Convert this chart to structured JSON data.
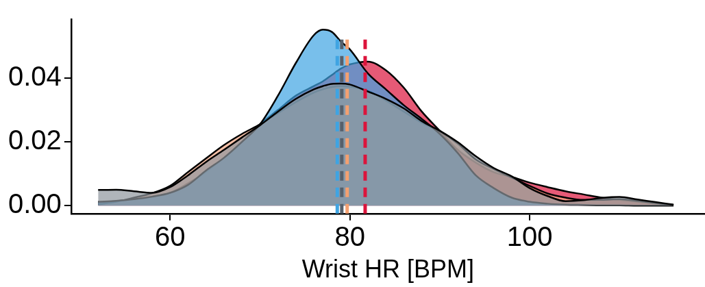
{
  "chart_data": {
    "type": "area",
    "xlabel": "Wrist HR [BPM]",
    "x": [
      52,
      54,
      56,
      58,
      60,
      62,
      64,
      66,
      68,
      70,
      72,
      74,
      76,
      77,
      78,
      79,
      80,
      82,
      84,
      86,
      88,
      90,
      92,
      94,
      96,
      98,
      100,
      102,
      104,
      106,
      108,
      110,
      112,
      114,
      116
    ],
    "series": [
      {
        "color": "#dc143c",
        "values": [
          0.001,
          0.0014,
          0.002,
          0.0028,
          0.004,
          0.007,
          0.0105,
          0.015,
          0.02,
          0.0255,
          0.03,
          0.0345,
          0.0375,
          0.039,
          0.041,
          0.043,
          0.0443,
          0.0452,
          0.0425,
          0.037,
          0.0295,
          0.0235,
          0.0175,
          0.0135,
          0.0105,
          0.009,
          0.0072,
          0.0058,
          0.0045,
          0.0035,
          0.0025,
          0.0018,
          0.0012,
          0.0006,
          0.0002
        ]
      },
      {
        "color": "#f4a582",
        "values": [
          0.0004,
          0.0012,
          0.0025,
          0.0039,
          0.0062,
          0.0105,
          0.0148,
          0.019,
          0.0225,
          0.0255,
          0.029,
          0.0325,
          0.0355,
          0.0365,
          0.0372,
          0.0375,
          0.0373,
          0.036,
          0.033,
          0.0295,
          0.026,
          0.0233,
          0.0195,
          0.0145,
          0.0115,
          0.0088,
          0.0062,
          0.0038,
          0.0025,
          0.0018,
          0.0018,
          0.002,
          0.0015,
          0.0008,
          0.0002
        ]
      },
      {
        "color": "#3fa4e2",
        "values": [
          0.0012,
          0.0015,
          0.002,
          0.0028,
          0.004,
          0.0065,
          0.011,
          0.015,
          0.02,
          0.0255,
          0.0345,
          0.0448,
          0.0535,
          0.0552,
          0.0545,
          0.0515,
          0.049,
          0.0415,
          0.0365,
          0.0315,
          0.0272,
          0.0225,
          0.0165,
          0.0095,
          0.0055,
          0.0025,
          0.0012,
          0.0006,
          0.0003,
          0.0002,
          0.0001,
          0.0001,
          0,
          0,
          0
        ]
      },
      {
        "color": "#8f969c",
        "values": [
          0.0049,
          0.005,
          0.0045,
          0.004,
          0.0058,
          0.0095,
          0.0137,
          0.0175,
          0.0214,
          0.0252,
          0.0295,
          0.0335,
          0.0365,
          0.0375,
          0.0382,
          0.0383,
          0.038,
          0.0358,
          0.0335,
          0.0305,
          0.0265,
          0.0235,
          0.0199,
          0.0155,
          0.0118,
          0.0092,
          0.0055,
          0.003,
          0.0014,
          0.0017,
          0.0024,
          0.0027,
          0.0019,
          0.0011,
          0.0003
        ]
      }
    ],
    "ref_lines": [
      {
        "axis": "x",
        "value": 78.6,
        "color": "#3fa4e2",
        "line_style": "dashed"
      },
      {
        "axis": "x",
        "value": 79.1,
        "color": "#56606b",
        "line_style": "dashed"
      },
      {
        "axis": "x",
        "value": 79.7,
        "color": "#f4a070",
        "line_style": "dashed"
      },
      {
        "axis": "x",
        "value": 81.7,
        "color": "#dc143c",
        "line_style": "dashed"
      }
    ],
    "xlim": [
      49,
      119.5
    ],
    "ylim": [
      -0.0025,
      0.0585
    ],
    "xticks": [
      60,
      80,
      100
    ],
    "yticks": [
      {
        "value": 0,
        "label": "0.00"
      },
      {
        "value": 0.02,
        "label": "0.02"
      },
      {
        "value": 0.04,
        "label": "0.04"
      }
    ],
    "grid": false,
    "legend": false,
    "marker": "none"
  }
}
